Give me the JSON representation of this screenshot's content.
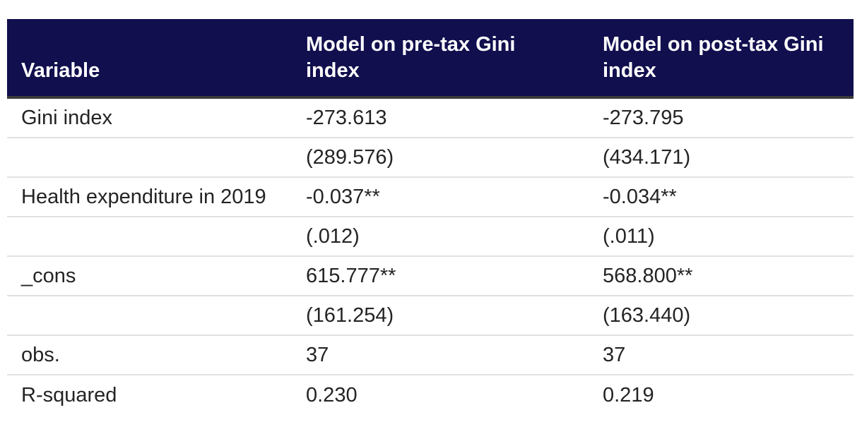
{
  "colors": {
    "header_bg": "#110f4e",
    "header_text": "#ffffff",
    "header_border": "#3b3b3b",
    "row_divider": "#e1e1e1",
    "body_text": "#242424",
    "page_bg": "#ffffff"
  },
  "table": {
    "columns": [
      {
        "label": "Variable"
      },
      {
        "label": "Model on pre-tax Gini index"
      },
      {
        "label": "Model on post-tax Gini index"
      }
    ],
    "rows": [
      [
        "Gini index",
        "-273.613",
        "-273.795"
      ],
      [
        "",
        "(289.576)",
        "(434.171)"
      ],
      [
        "Health expenditure in 2019",
        "-0.037**",
        "-0.034**"
      ],
      [
        "",
        "(.012)",
        "(.011)"
      ],
      [
        "_cons",
        "615.777**",
        "568.800**"
      ],
      [
        "",
        "(161.254)",
        "(163.440)"
      ],
      [
        "obs.",
        "37",
        "37"
      ],
      [
        "R-squared",
        "0.230",
        "0.219"
      ]
    ]
  }
}
